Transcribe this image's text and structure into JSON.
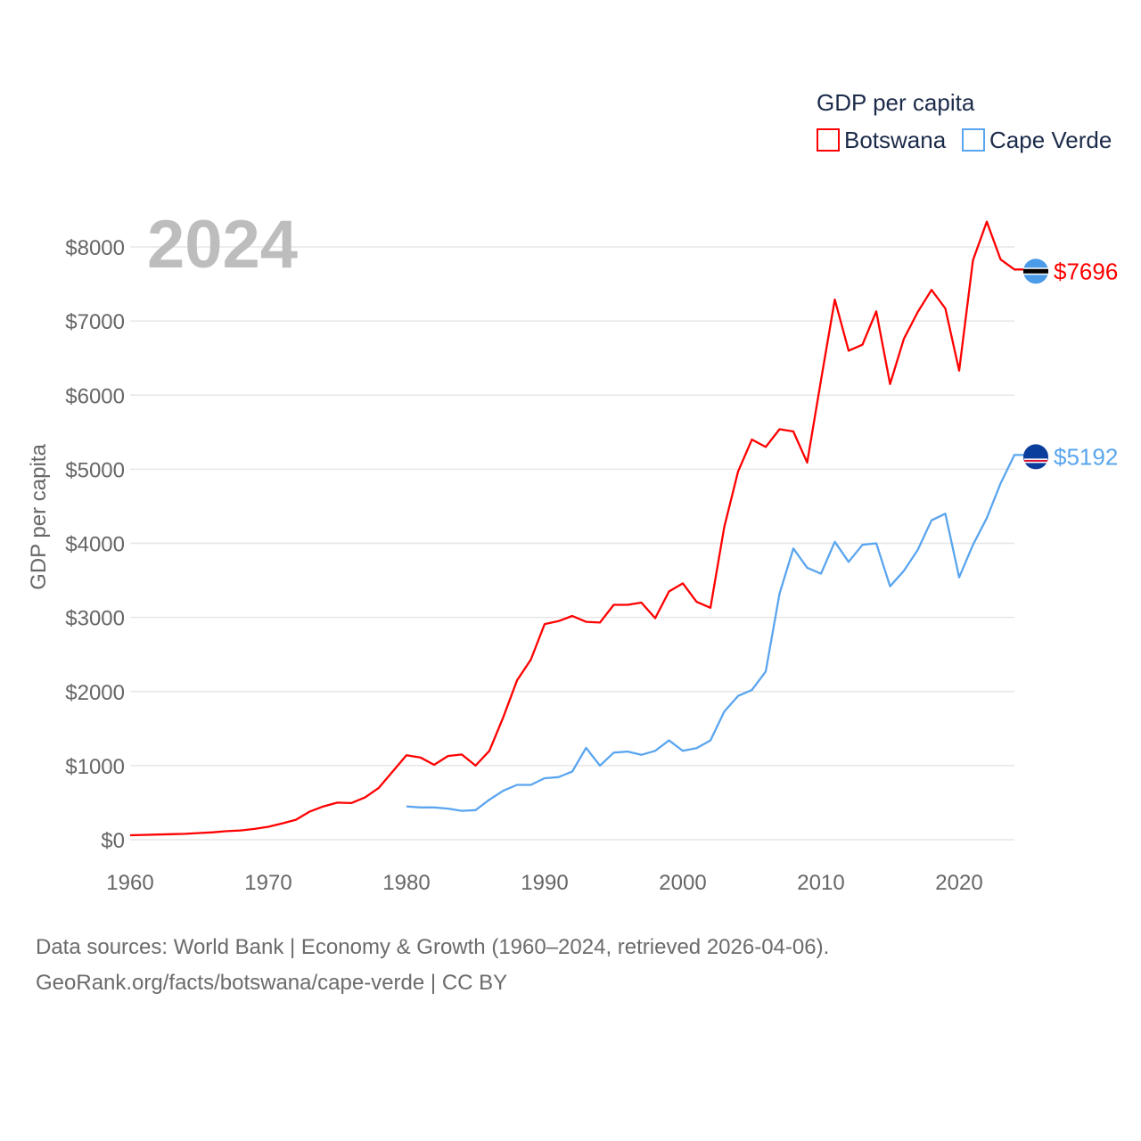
{
  "chart_data": {
    "type": "line",
    "title": "GDP per capita",
    "year_label": "2024",
    "ylabel": "GDP per capita",
    "xlabel": "",
    "xlim": [
      1960,
      2024
    ],
    "ylim": [
      0,
      8000
    ],
    "x_ticks": [
      1960,
      1970,
      1980,
      1990,
      2000,
      2010,
      2020
    ],
    "y_ticks": [
      0,
      1000,
      2000,
      3000,
      4000,
      5000,
      6000,
      7000,
      8000
    ],
    "y_tick_labels": [
      "$0",
      "$1000",
      "$2000",
      "$3000",
      "$4000",
      "$5000",
      "$6000",
      "$7000",
      "$8000"
    ],
    "grid": true,
    "legend_position": "top-right",
    "series": [
      {
        "name": "Botswana",
        "color": "#ff0000",
        "end_label": "$7696",
        "start_year": 1960,
        "values": [
          60,
          65,
          70,
          75,
          80,
          90,
          100,
          115,
          125,
          145,
          175,
          220,
          270,
          380,
          450,
          500,
          495,
          570,
          700,
          920,
          1140,
          1110,
          1010,
          1130,
          1150,
          1000,
          1200,
          1650,
          2150,
          2430,
          2910,
          2950,
          3020,
          2940,
          2930,
          3170,
          3170,
          3200,
          2990,
          3350,
          3460,
          3210,
          3130,
          4220,
          4970,
          5400,
          5300,
          5540,
          5510,
          5090,
          6200,
          7290,
          6600,
          6680,
          7130,
          6150,
          6760,
          7120,
          7420,
          7170,
          6330,
          7820,
          8340,
          7830,
          7696
        ]
      },
      {
        "name": "Cape Verde",
        "color": "#5aa5ef",
        "end_label": "$5192",
        "start_year": 1980,
        "values": [
          450,
          435,
          435,
          420,
          390,
          400,
          540,
          660,
          740,
          740,
          830,
          845,
          920,
          1240,
          1000,
          1175,
          1190,
          1145,
          1200,
          1340,
          1200,
          1235,
          1340,
          1730,
          1940,
          2020,
          2270,
          3320,
          3930,
          3670,
          3590,
          4020,
          3750,
          3980,
          4000,
          3420,
          3630,
          3910,
          4310,
          4400,
          3540,
          3980,
          4340,
          4810,
          5192
        ]
      }
    ]
  },
  "footer": {
    "line1": "Data sources: World Bank | Economy & Growth (1960–2024, retrieved 2026-04-06).",
    "line2": "GeoRank.org/facts/botswana/cape-verde | CC BY"
  }
}
